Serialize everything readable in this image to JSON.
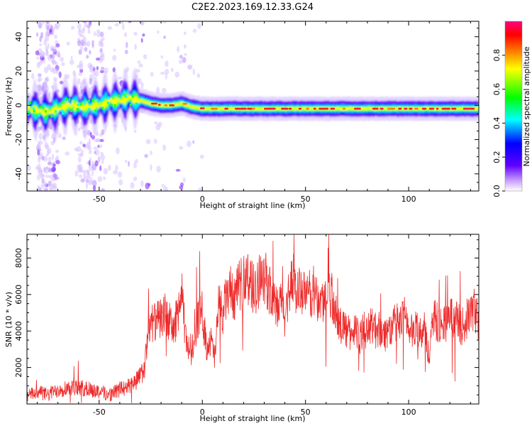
{
  "title": "C2E2.2023.169.12.33.G24",
  "chart_data": [
    {
      "type": "heatmap",
      "title": "C2E2.2023.169.12.33.G24",
      "xlabel": "Height of straight line (km)",
      "ylabel": "Frequency (Hz)",
      "xlim": [
        -85,
        134
      ],
      "ylim": [
        -50,
        49
      ],
      "xticks": [
        -50,
        0,
        50,
        100
      ],
      "yticks": [
        -40,
        -20,
        0,
        20,
        40
      ],
      "colorbar": {
        "label": "Normalized spectral amplitude",
        "range": [
          0,
          1
        ],
        "ticks": [
          0.0,
          0.2,
          0.4,
          0.6,
          0.8
        ],
        "colors": [
          "#ffffff",
          "#6000ff",
          "#0000ff",
          "#00ffff",
          "#00ff00",
          "#ffff00",
          "#ff8000",
          "#ff0000",
          "#ff0080"
        ]
      },
      "ridge": {
        "x": [
          -85,
          -75,
          -65,
          -55,
          -45,
          -35,
          -30,
          -25,
          -20,
          -15,
          -10,
          -5,
          0,
          10,
          20,
          30,
          40,
          50,
          60,
          70,
          80,
          90,
          100,
          110,
          120,
          134
        ],
        "frequency": [
          -2,
          -4,
          0,
          -1,
          2,
          4,
          3,
          1,
          0,
          0,
          1,
          -1,
          -2,
          -2,
          -2,
          -2,
          -2,
          -2,
          -2,
          -2,
          -2,
          -2,
          -2,
          -2,
          -2,
          -2
        ]
      }
    },
    {
      "type": "line",
      "xlabel": "Height of straight line (km)",
      "ylabel": "SNR (10 * v/v)",
      "xlim": [
        -85,
        134
      ],
      "ylim": [
        0,
        9300
      ],
      "xticks": [
        -50,
        0,
        50,
        100
      ],
      "yticks": [
        2000,
        4000,
        6000,
        8000
      ],
      "color": "#ee2a2a",
      "x": [
        -85,
        -80,
        -75,
        -70,
        -65,
        -60,
        -55,
        -50,
        -45,
        -40,
        -35,
        -30,
        -28,
        -26,
        -24,
        -22,
        -20,
        -18,
        -16,
        -14,
        -12,
        -10,
        -8,
        -6,
        -4,
        -2,
        0,
        2,
        4,
        6,
        8,
        10,
        12,
        14,
        16,
        18,
        20,
        22,
        24,
        26,
        28,
        30,
        32,
        34,
        36,
        38,
        40,
        42,
        44,
        46,
        48,
        50,
        52,
        54,
        56,
        58,
        60,
        62,
        64,
        66,
        68,
        70,
        72,
        74,
        76,
        78,
        80,
        82,
        84,
        86,
        88,
        90,
        92,
        94,
        96,
        98,
        100,
        102,
        104,
        106,
        108,
        110,
        112,
        114,
        116,
        118,
        120,
        122,
        124,
        126,
        128,
        130,
        132,
        134
      ],
      "values": [
        400,
        700,
        500,
        800,
        900,
        900,
        800,
        700,
        500,
        800,
        1000,
        1500,
        2000,
        4000,
        4500,
        4500,
        4700,
        5000,
        4500,
        4000,
        5000,
        6000,
        3500,
        3000,
        3500,
        4800,
        5000,
        3200,
        3500,
        2500,
        5500,
        5000,
        6000,
        6200,
        5800,
        6500,
        6700,
        7000,
        6500,
        6000,
        7200,
        7000,
        6500,
        5500,
        5200,
        5500,
        4800,
        6200,
        7000,
        6000,
        6300,
        5800,
        6000,
        6200,
        5700,
        5600,
        5800,
        6200,
        5500,
        4200,
        4400,
        4000,
        3800,
        4200,
        3500,
        4200,
        3800,
        4500,
        4000,
        4200,
        3800,
        4000,
        4200,
        4500,
        4400,
        4800,
        4300,
        3800,
        4200,
        4100,
        4300,
        2300,
        4800,
        4500,
        4300,
        4500,
        4800,
        4700,
        4500,
        4200,
        4600,
        5000,
        5200,
        4500
      ]
    }
  ]
}
